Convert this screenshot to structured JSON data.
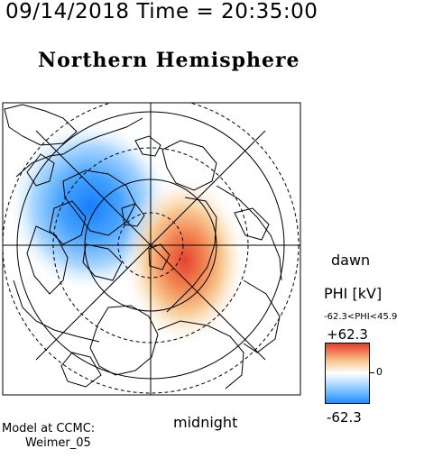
{
  "header": {
    "datetime": "09/14/2018 Time = 20:35:00"
  },
  "title": "Northern Hemisphere",
  "orientation": {
    "dawn": "dawn",
    "midnight": "midnight"
  },
  "model": {
    "line1": "Model at CCMC:",
    "line2": "Weimer_05"
  },
  "colorbar": {
    "title": "PHI [kV]",
    "range": "-62.3<PHI<45.9",
    "max_label": "+62.3",
    "zero_label": "0",
    "min_label": "-62.3",
    "max": 62.3,
    "min": -62.3,
    "colors": [
      "#1f8fff",
      "#ffffff",
      "#e83a2a"
    ]
  },
  "potential": {
    "negative_cell_color": "#1f8fff",
    "positive_cell_color": "#e83a2a"
  }
}
